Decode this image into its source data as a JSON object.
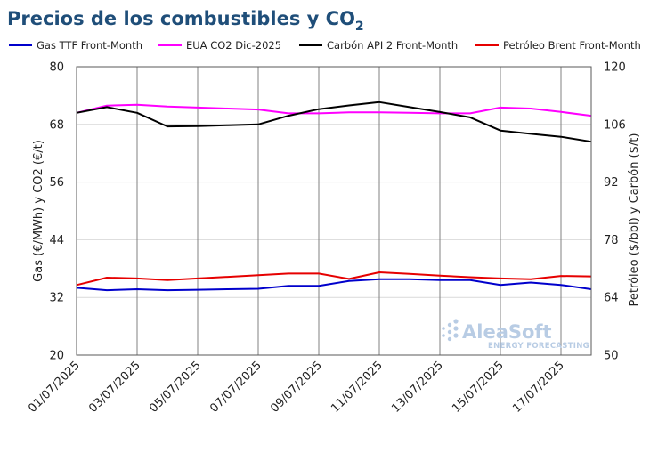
{
  "chart_data": {
    "type": "line",
    "title": "Precios de los combustibles y CO",
    "title_subscript": "2",
    "ylabel_left": "Gas (€/MWh) y CO2 (€/t)",
    "ylabel_right": "Petróleo ($/bbl) y Carbón ($/t)",
    "ylim_left": [
      20,
      80
    ],
    "ylim_right": [
      50,
      120
    ],
    "yticks_left": [
      "80",
      "68",
      "56",
      "44",
      "32",
      "20"
    ],
    "yticks_right": [
      "120",
      "106",
      "92",
      "78",
      "64",
      "50"
    ],
    "x_tick_labels": [
      "01/07/2025",
      "03/07/2025",
      "05/07/2025",
      "07/07/2025",
      "09/07/2025",
      "11/07/2025",
      "13/07/2025",
      "15/07/2025",
      "17/07/2025"
    ],
    "x": [
      "01/07/2025",
      "02/07/2025",
      "03/07/2025",
      "04/07/2025",
      "05/07/2025",
      "06/07/2025",
      "07/07/2025",
      "08/07/2025",
      "09/07/2025",
      "10/07/2025",
      "11/07/2025",
      "12/07/2025",
      "13/07/2025",
      "14/07/2025",
      "15/07/2025",
      "16/07/2025",
      "17/07/2025",
      "18/07/2025"
    ],
    "legend_position": "top",
    "grid": true,
    "series": [
      {
        "name": "Gas TTF Front-Month",
        "axis": "left",
        "color": "#0000cc",
        "values": [
          34.0,
          33.5,
          33.7,
          33.5,
          33.6,
          33.7,
          33.8,
          34.4,
          34.4,
          35.4,
          35.8,
          35.8,
          35.6,
          35.6,
          34.6,
          35.1,
          34.6,
          33.7
        ]
      },
      {
        "name": "EUA CO2 Dic-2025",
        "axis": "left",
        "color": "#ff00ff",
        "values": [
          70.4,
          71.9,
          72.1,
          71.7,
          71.5,
          71.3,
          71.1,
          70.3,
          70.3,
          70.5,
          70.5,
          70.4,
          70.3,
          70.3,
          71.5,
          71.3,
          70.6,
          69.8
        ]
      },
      {
        "name": "Carbón API 2 Front-Month",
        "axis": "right",
        "color": "#000000",
        "values": [
          108.8,
          110.2,
          108.8,
          105.5,
          105.6,
          105.8,
          106.0,
          108.1,
          109.7,
          110.6,
          111.4,
          110.2,
          109.0,
          107.7,
          104.5,
          103.7,
          103.0,
          101.8
        ]
      },
      {
        "name": "Petróleo Brent Front-Month",
        "axis": "right",
        "color": "#e60000",
        "values": [
          67.0,
          68.8,
          68.6,
          68.2,
          68.6,
          69.0,
          69.4,
          69.8,
          69.8,
          68.5,
          70.1,
          69.7,
          69.3,
          68.9,
          68.6,
          68.4,
          69.2,
          69.1
        ]
      }
    ]
  },
  "watermark": {
    "brand": "AleaSoft",
    "tagline": "ENERGY FORECASTING"
  }
}
